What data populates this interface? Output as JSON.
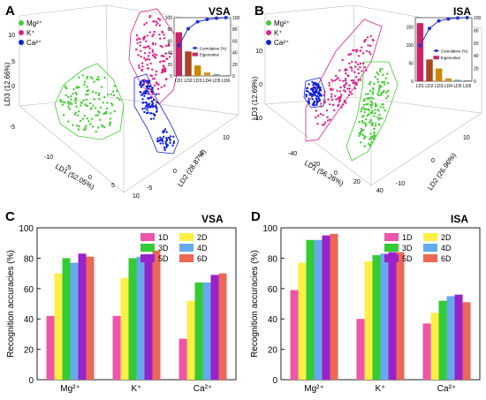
{
  "panels": {
    "A": {
      "letter": "A",
      "title": "VSA",
      "x_label": "LD1 (52.05%)",
      "y_label": "LD2 (28.87%)",
      "z_label": "LD3 (12.66%)",
      "x_ticks": [
        "-10",
        "-5",
        "0",
        "5",
        "10"
      ],
      "y_ticks": [
        "-5",
        "0",
        "5",
        "10"
      ],
      "z_ticks": [
        "-5",
        "0",
        "5",
        "10"
      ],
      "legend": [
        "Mg²⁺",
        "K⁺",
        "Ca²⁺"
      ]
    },
    "B": {
      "letter": "B",
      "title": "ISA",
      "x_label": "LD1 (56.26%)",
      "y_label": "LD2 (26.96%)",
      "z_label": "LD3 (12.69%)",
      "x_ticks": [
        "-40",
        "-20",
        "0",
        "20",
        "40"
      ],
      "y_ticks": [
        "-10",
        "0",
        "10"
      ],
      "z_ticks": [
        "-10",
        "0",
        "10"
      ],
      "legend": [
        "Mg²⁺",
        "K⁺",
        "Ca²⁺"
      ]
    },
    "C": {
      "letter": "C",
      "title": "VSA"
    },
    "D": {
      "letter": "D",
      "title": "ISA"
    }
  },
  "colors": {
    "Mg": "#44cc33",
    "K": "#dd2288",
    "Ca": "#1122dd"
  },
  "bar_colors": [
    "#ee55aa",
    "#ffee44",
    "#33cc33",
    "#66aaee",
    "#9922cc",
    "#ee6655"
  ],
  "chart_data": [
    {
      "type": "bar",
      "panel": "A-inset",
      "categories": [
        "LD1",
        "LD2",
        "LD3",
        "LD4",
        "LD5",
        "LD6"
      ],
      "series": [
        {
          "name": "Cumulative (%)",
          "values": [
            52,
            81,
            93,
            97,
            99,
            100
          ]
        },
        {
          "name": "Eigenvalue",
          "values": [
            75,
            42,
            18,
            6,
            3,
            1
          ]
        }
      ],
      "ylim_left": [
        0,
        100
      ],
      "ylim_right": [
        0,
        100
      ],
      "left_ticks": [
        0,
        20,
        40,
        60,
        80,
        100
      ],
      "right_ticks": [
        0,
        20,
        40,
        60,
        80,
        100
      ]
    },
    {
      "type": "bar",
      "panel": "B-inset",
      "categories": [
        "LD1",
        "LD2",
        "LD3",
        "LD4",
        "LD5",
        "LD6"
      ],
      "series": [
        {
          "name": "Cumulative (%)",
          "values": [
            56,
            83,
            95,
            98,
            99.5,
            100
          ]
        },
        {
          "name": "Eigenvalue",
          "values": [
            160,
            60,
            35,
            8,
            4,
            2
          ]
        }
      ],
      "ylim_left": [
        0,
        175
      ],
      "ylim_right": [
        0,
        100
      ],
      "left_ticks": [
        0,
        50,
        100,
        150
      ],
      "right_ticks": [
        0,
        20,
        40,
        60,
        80,
        100
      ]
    },
    {
      "type": "bar",
      "panel": "C",
      "categories": [
        "Mg²⁺",
        "K⁺",
        "Ca²⁺"
      ],
      "series": [
        {
          "name": "1D",
          "values": [
            42,
            42,
            27
          ]
        },
        {
          "name": "2D",
          "values": [
            70,
            67,
            52
          ]
        },
        {
          "name": "3D",
          "values": [
            80,
            80,
            64
          ]
        },
        {
          "name": "4D",
          "values": [
            77,
            81,
            64
          ]
        },
        {
          "name": "5D",
          "values": [
            83,
            80,
            69
          ]
        },
        {
          "name": "6D",
          "values": [
            81,
            85,
            70
          ]
        }
      ],
      "ylabel": "Recognition accuracies (%)",
      "ylim": [
        0,
        100
      ],
      "y_ticks": [
        0,
        20,
        40,
        60,
        80,
        100
      ],
      "legend": "top-right"
    },
    {
      "type": "bar",
      "panel": "D",
      "categories": [
        "Mg²⁺",
        "K⁺",
        "Ca²⁺"
      ],
      "series": [
        {
          "name": "1D",
          "values": [
            59,
            40,
            37
          ]
        },
        {
          "name": "2D",
          "values": [
            77,
            78,
            44
          ]
        },
        {
          "name": "3D",
          "values": [
            92,
            82,
            52
          ]
        },
        {
          "name": "4D",
          "values": [
            92,
            83,
            55
          ]
        },
        {
          "name": "5D",
          "values": [
            95,
            84,
            56
          ]
        },
        {
          "name": "6D",
          "values": [
            96,
            84,
            51
          ]
        }
      ],
      "ylabel": "Recognition accuracies (%)",
      "ylim": [
        0,
        100
      ],
      "y_ticks": [
        0,
        20,
        40,
        60,
        80,
        100
      ],
      "legend": "top-right"
    }
  ]
}
